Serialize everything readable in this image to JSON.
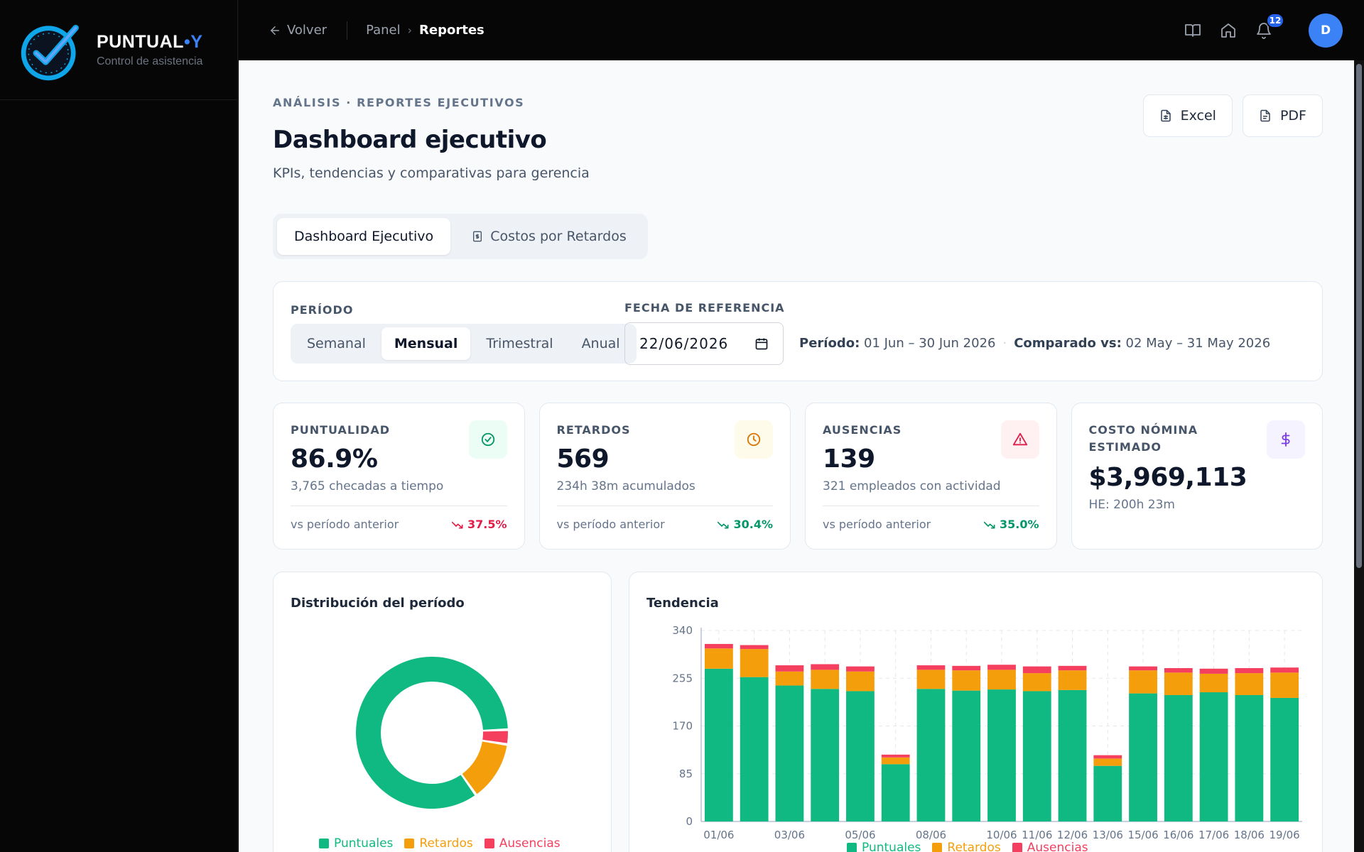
{
  "brand": {
    "name": "PUNTUAL",
    "name_accent": "•Y",
    "subtitle": "Control de asistencia"
  },
  "topbar": {
    "back_label": "Volver",
    "breadcrumb": [
      "Panel",
      "Reportes"
    ],
    "notifications_count": "12",
    "avatar_initial": "D",
    "icons": [
      "book-open-icon",
      "home-icon",
      "bell-icon"
    ]
  },
  "header": {
    "eyebrow": "ANÁLISIS · REPORTES EJECUTIVOS",
    "title": "Dashboard ejecutivo",
    "subtitle": "KPIs, tendencias y comparativas para gerencia",
    "export_excel": "Excel",
    "export_pdf": "PDF"
  },
  "tabs": [
    {
      "label": "Dashboard Ejecutivo",
      "active": true
    },
    {
      "label": "Costos por Retardos",
      "active": false,
      "icon": "receipt-icon"
    }
  ],
  "filters": {
    "period_label": "PERÍODO",
    "period_options": [
      "Semanal",
      "Mensual",
      "Trimestral",
      "Anual"
    ],
    "period_selected": "Mensual",
    "ref_date_label": "FECHA DE REFERENCIA",
    "ref_date_value": "22/06/2026",
    "period_key": "Período:",
    "period_value": "01 Jun – 30 Jun 2026",
    "compare_key": "Comparado vs:",
    "compare_value": "02 May – 31 May 2026"
  },
  "kpis": [
    {
      "label": "PUNTUALIDAD",
      "value": "86.9%",
      "sub": "3,765 checadas a tiempo",
      "foot": "vs período anterior",
      "delta": "37.5%",
      "delta_color": "#e11d48",
      "icon": "check-circle-icon",
      "icon_color": "#059669",
      "icon_bg": "#ecfdf5"
    },
    {
      "label": "RETARDOS",
      "value": "569",
      "sub": "234h 38m acumulados",
      "foot": "vs período anterior",
      "delta": "30.4%",
      "delta_color": "#059669",
      "icon": "clock-icon",
      "icon_color": "#d97706",
      "icon_bg": "#fffbeb"
    },
    {
      "label": "AUSENCIAS",
      "value": "139",
      "sub": "321 empleados con actividad",
      "foot": "vs período anterior",
      "delta": "35.0%",
      "delta_color": "#059669",
      "icon": "alert-triangle-icon",
      "icon_color": "#e11d48",
      "icon_bg": "#fff1f2"
    },
    {
      "label": "COSTO NÓMINA ESTIMADO",
      "value": "$3,969,113",
      "sub": "HE: 200h 23m",
      "icon": "dollar-icon",
      "icon_color": "#7c3aed",
      "icon_bg": "#f5f3ff"
    }
  ],
  "donut": {
    "title": "Distribución del período",
    "legend": [
      "Puntuales",
      "Retardos",
      "Ausencias"
    ]
  },
  "trend": {
    "title": "Tendencia",
    "legend": [
      "Puntuales",
      "Retardos",
      "Ausencias"
    ]
  },
  "colors": {
    "puntuales": "#10b981",
    "retardos": "#f59e0b",
    "ausencias": "#f43f5e",
    "brand_blue": "#3b82f6"
  },
  "chart_data": [
    {
      "type": "pie",
      "title": "Distribución del período",
      "categories": [
        "Puntuales",
        "Retardos",
        "Ausencias"
      ],
      "values": [
        3765,
        569,
        139
      ]
    },
    {
      "type": "bar",
      "stacked": true,
      "title": "Tendencia",
      "categories": [
        "01/06",
        "02/06",
        "03/06",
        "04/06",
        "05/06",
        "06/06",
        "08/06",
        "09/06",
        "10/06",
        "11/06",
        "12/06",
        "13/06",
        "15/06",
        "16/06",
        "17/06",
        "18/06",
        "19/06"
      ],
      "x_tick_labels": [
        "01/06",
        "03/06",
        "05/06",
        "08/06",
        "10/06",
        "11/06",
        "12/06",
        "13/06",
        "15/06",
        "16/06",
        "17/06",
        "18/06",
        "19/06"
      ],
      "series": [
        {
          "name": "Puntuales",
          "values": [
            272,
            257,
            242,
            236,
            232,
            102,
            236,
            233,
            235,
            232,
            234,
            99,
            228,
            225,
            230,
            225,
            220
          ]
        },
        {
          "name": "Retardos",
          "values": [
            36,
            50,
            25,
            34,
            35,
            12,
            34,
            36,
            35,
            32,
            35,
            13,
            41,
            40,
            33,
            39,
            45
          ]
        },
        {
          "name": "Ausencias",
          "values": [
            8,
            7,
            11,
            10,
            9,
            5,
            8,
            8,
            9,
            12,
            8,
            6,
            7,
            8,
            9,
            9,
            9
          ]
        }
      ],
      "ylim": [
        0,
        340
      ],
      "yticks": [
        0,
        85,
        170,
        255,
        340
      ],
      "grid": true,
      "legend_position": "bottom"
    }
  ]
}
